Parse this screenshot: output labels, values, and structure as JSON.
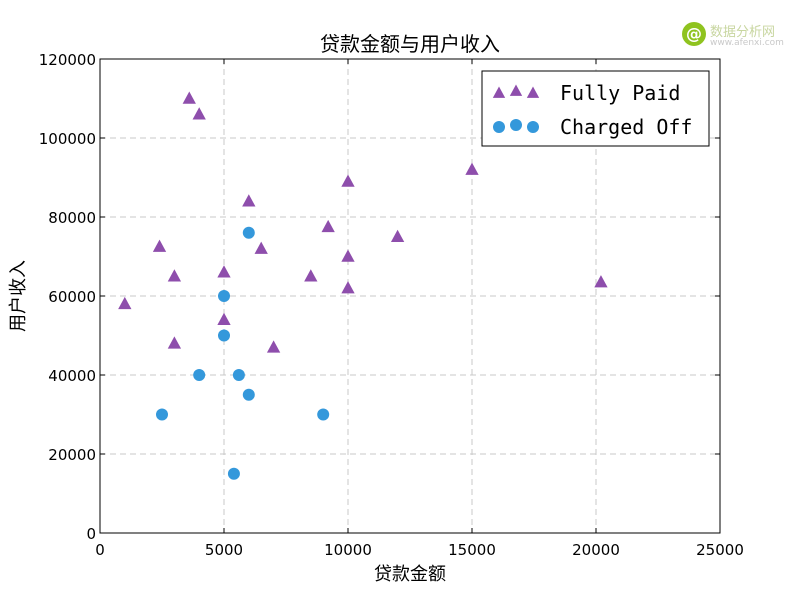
{
  "watermark": {
    "name": "数据分析网",
    "url": "www.afenxi.com"
  },
  "chart_data": {
    "type": "scatter",
    "title": "贷款金额与用户收入",
    "xlabel": "贷款金额",
    "ylabel": "用户收入",
    "xlim": [
      0,
      25000
    ],
    "ylim": [
      0,
      120000
    ],
    "xticks": [
      0,
      5000,
      10000,
      15000,
      20000,
      25000
    ],
    "yticks": [
      0,
      20000,
      40000,
      60000,
      80000,
      100000,
      120000
    ],
    "grid": true,
    "legend_position": "top-right",
    "series": [
      {
        "name": "Fully Paid",
        "marker": "triangle",
        "color": "#8e4eac",
        "points": [
          [
            1000,
            58000
          ],
          [
            2400,
            72500
          ],
          [
            3000,
            65000
          ],
          [
            3000,
            48000
          ],
          [
            3600,
            110000
          ],
          [
            4000,
            106000
          ],
          [
            5000,
            66000
          ],
          [
            5000,
            54000
          ],
          [
            6000,
            84000
          ],
          [
            6500,
            72000
          ],
          [
            7000,
            47000
          ],
          [
            8500,
            65000
          ],
          [
            9200,
            77500
          ],
          [
            10000,
            89000
          ],
          [
            10000,
            70000
          ],
          [
            10000,
            62000
          ],
          [
            12000,
            75000
          ],
          [
            15000,
            92000
          ],
          [
            20200,
            63500
          ]
        ]
      },
      {
        "name": "Charged Off",
        "marker": "circle",
        "color": "#3498db",
        "points": [
          [
            2500,
            30000
          ],
          [
            4000,
            40000
          ],
          [
            5000,
            60000
          ],
          [
            5000,
            50000
          ],
          [
            5400,
            15000
          ],
          [
            5600,
            40000
          ],
          [
            6000,
            76000
          ],
          [
            6000,
            35000
          ],
          [
            9000,
            30000
          ]
        ]
      }
    ]
  }
}
